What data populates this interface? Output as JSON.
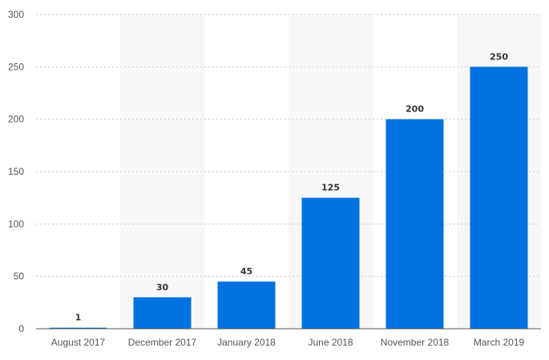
{
  "chart_data": {
    "type": "bar",
    "title": "",
    "xlabel": "",
    "ylabel": "",
    "categories": [
      "August 2017",
      "December 2017",
      "January 2018",
      "June 2018",
      "November 2018",
      "March 2019"
    ],
    "values": [
      1,
      30,
      45,
      125,
      200,
      250
    ],
    "ylim": [
      0,
      300
    ],
    "yticks": [
      0,
      50,
      100,
      150,
      200,
      250,
      300
    ],
    "grid": true,
    "legend": "none",
    "colors": {
      "bar": "#0072df",
      "band": "#f7f7f7"
    }
  }
}
